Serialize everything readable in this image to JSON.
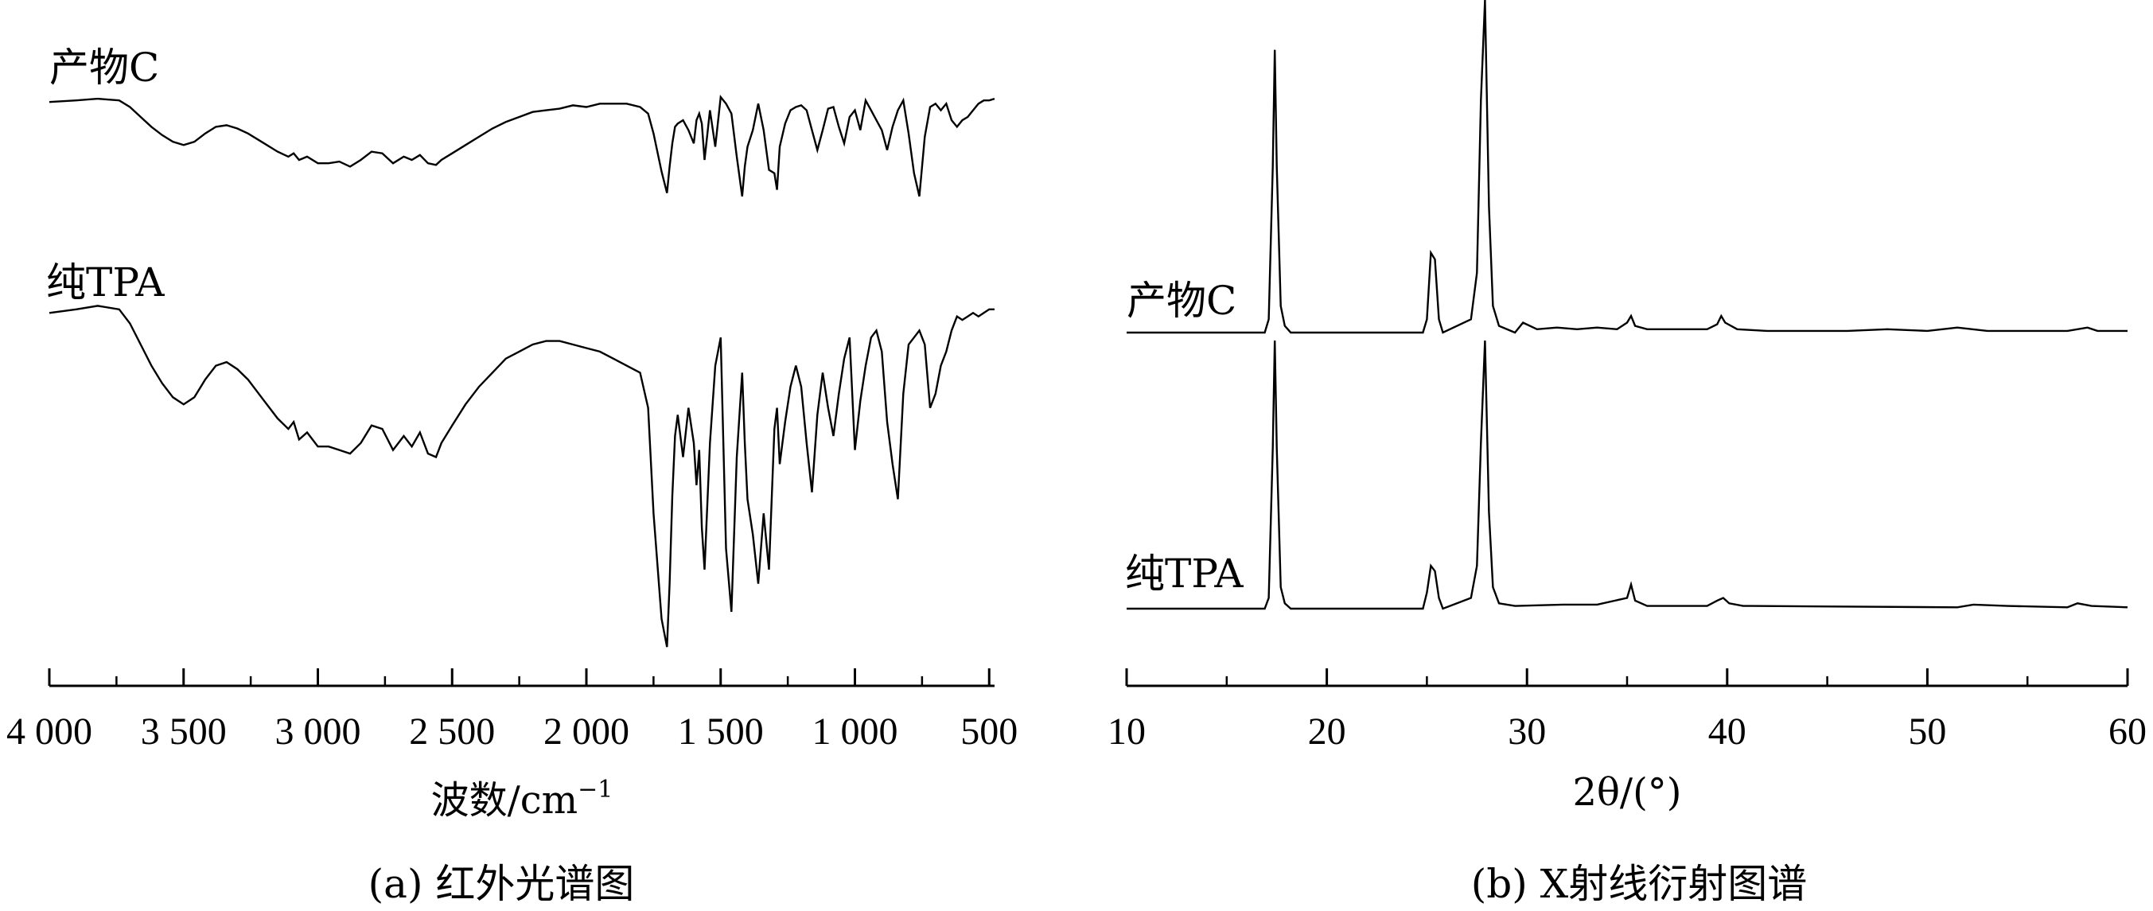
{
  "figure": {
    "captions": [
      "(a)  红外光谱图",
      "(b)  X射线衍射图谱"
    ]
  },
  "chart_data": [
    {
      "type": "line",
      "caption": "(a)  红外光谱图",
      "xlabel": "波数/cm",
      "xlabel_sup": "−1",
      "xlim": [
        4000,
        480
      ],
      "xticks": [
        4000,
        3500,
        3000,
        2500,
        2000,
        1500,
        1000,
        500
      ],
      "xtick_labels": [
        "4 000",
        "3 500",
        "3 000",
        "2 500",
        "2 000",
        "1 500",
        "1 000",
        "500"
      ],
      "xaxis_inverted": true,
      "yaxis_shown": false,
      "ylim": [
        0,
        100
      ],
      "series": [
        {
          "name": "产物C",
          "x": [
            4000,
            3900,
            3820,
            3740,
            3700,
            3660,
            3620,
            3580,
            3540,
            3500,
            3460,
            3420,
            3380,
            3340,
            3300,
            3260,
            3200,
            3150,
            3110,
            3090,
            3070,
            3040,
            3000,
            2960,
            2920,
            2880,
            2840,
            2800,
            2760,
            2720,
            2680,
            2650,
            2620,
            2590,
            2560,
            2540,
            2500,
            2450,
            2400,
            2350,
            2300,
            2250,
            2200,
            2150,
            2100,
            2050,
            2000,
            1950,
            1900,
            1850,
            1800,
            1770,
            1750,
            1720,
            1700,
            1690,
            1680,
            1670,
            1660,
            1640,
            1620,
            1600,
            1590,
            1580,
            1570,
            1560,
            1540,
            1520,
            1500,
            1480,
            1460,
            1440,
            1420,
            1410,
            1400,
            1380,
            1360,
            1340,
            1320,
            1300,
            1290,
            1280,
            1260,
            1240,
            1220,
            1200,
            1180,
            1160,
            1140,
            1120,
            1100,
            1080,
            1060,
            1040,
            1020,
            1000,
            980,
            960,
            940,
            920,
            900,
            880,
            860,
            840,
            820,
            800,
            780,
            760,
            740,
            720,
            700,
            680,
            660,
            640,
            620,
            600,
            580,
            560,
            540,
            520,
            500,
            480
          ],
          "y": [
            97,
            98,
            99,
            98,
            94,
            88,
            82,
            77,
            73,
            71,
            73,
            78,
            82,
            83,
            81,
            78,
            72,
            67,
            64,
            66,
            62,
            64,
            60,
            60,
            61,
            58,
            62,
            67,
            66,
            60,
            64,
            62,
            65,
            60,
            59,
            62,
            66,
            71,
            76,
            81,
            85,
            88,
            91,
            92,
            93,
            95,
            94,
            96,
            96,
            96,
            94,
            90,
            78,
            55,
            42,
            58,
            72,
            82,
            84,
            86,
            80,
            72,
            86,
            90,
            84,
            62,
            92,
            70,
            100,
            96,
            90,
            64,
            40,
            58,
            70,
            80,
            96,
            80,
            56,
            54,
            44,
            70,
            84,
            92,
            94,
            95,
            92,
            80,
            68,
            80,
            93,
            94,
            82,
            72,
            88,
            92,
            80,
            98,
            92,
            86,
            80,
            68,
            82,
            92,
            98,
            78,
            54,
            40,
            76,
            94,
            96,
            92,
            96,
            86,
            82,
            86,
            88,
            92,
            96,
            98,
            98,
            99
          ]
        },
        {
          "name": "纯TPA",
          "x": [
            4000,
            3900,
            3820,
            3740,
            3700,
            3660,
            3620,
            3580,
            3540,
            3500,
            3460,
            3420,
            3380,
            3340,
            3300,
            3260,
            3200,
            3150,
            3110,
            3090,
            3070,
            3040,
            3000,
            2960,
            2920,
            2880,
            2840,
            2800,
            2760,
            2720,
            2680,
            2650,
            2620,
            2590,
            2560,
            2540,
            2500,
            2450,
            2400,
            2350,
            2300,
            2250,
            2200,
            2150,
            2100,
            2050,
            2000,
            1950,
            1900,
            1850,
            1800,
            1770,
            1750,
            1720,
            1700,
            1690,
            1680,
            1670,
            1660,
            1640,
            1620,
            1600,
            1590,
            1580,
            1570,
            1560,
            1540,
            1520,
            1500,
            1480,
            1460,
            1440,
            1420,
            1410,
            1400,
            1380,
            1360,
            1340,
            1320,
            1300,
            1290,
            1280,
            1260,
            1240,
            1220,
            1200,
            1180,
            1160,
            1140,
            1120,
            1100,
            1080,
            1060,
            1040,
            1020,
            1000,
            980,
            960,
            940,
            920,
            900,
            880,
            860,
            840,
            820,
            800,
            780,
            760,
            740,
            720,
            700,
            680,
            660,
            640,
            620,
            600,
            580,
            560,
            540,
            520,
            500,
            480
          ],
          "y": [
            97,
            98,
            99,
            98,
            94,
            88,
            82,
            77,
            73,
            71,
            73,
            78,
            82,
            83,
            81,
            78,
            72,
            67,
            64,
            66,
            61,
            63,
            59,
            59,
            58,
            57,
            60,
            65,
            64,
            58,
            62,
            59,
            63,
            57,
            56,
            60,
            65,
            71,
            76,
            80,
            84,
            86,
            88,
            89,
            89,
            88,
            87,
            86,
            84,
            82,
            80,
            70,
            40,
            10,
            2,
            20,
            45,
            62,
            68,
            56,
            70,
            60,
            48,
            58,
            36,
            24,
            60,
            82,
            90,
            30,
            12,
            56,
            80,
            60,
            44,
            34,
            20,
            40,
            24,
            64,
            70,
            54,
            66,
            76,
            82,
            76,
            60,
            46,
            68,
            80,
            70,
            62,
            74,
            84,
            90,
            58,
            72,
            82,
            90,
            92,
            86,
            66,
            54,
            44,
            74,
            88,
            90,
            92,
            88,
            70,
            74,
            82,
            86,
            92,
            96,
            95,
            96,
            97,
            96,
            97,
            98,
            98
          ]
        }
      ]
    },
    {
      "type": "line",
      "caption": "(b)  X射线衍射图谱",
      "xlabel": "2θ/(°)",
      "xlim": [
        10,
        60
      ],
      "xticks": [
        10,
        20,
        30,
        40,
        50,
        60
      ],
      "xtick_labels": [
        "10",
        "20",
        "30",
        "40",
        "50",
        "60"
      ],
      "yaxis_shown": false,
      "ylim": [
        0,
        100
      ],
      "series": [
        {
          "name": "产物C",
          "x": [
            10,
            16.9,
            17.1,
            17.3,
            17.4,
            17.5,
            17.7,
            17.9,
            18.2,
            24.8,
            25.0,
            25.2,
            25.4,
            25.6,
            25.8,
            27.2,
            27.5,
            27.7,
            27.9,
            28.1,
            28.3,
            28.6,
            29.4,
            29.8,
            30.5,
            31.5,
            32.5,
            33.5,
            34.5,
            35.0,
            35.2,
            35.4,
            36.0,
            38.0,
            39.0,
            39.5,
            39.7,
            39.9,
            40.5,
            42.0,
            46.0,
            48.0,
            50.0,
            51.5,
            53.0,
            55.0,
            57.0,
            58.0,
            58.5,
            60
          ],
          "y": [
            0,
            0,
            4,
            50,
            85,
            50,
            8,
            2,
            0,
            0,
            4,
            24,
            22,
            4,
            0,
            4,
            18,
            70,
            100,
            38,
            8,
            2,
            0,
            3,
            1,
            1.5,
            1,
            1.5,
            1,
            3,
            5,
            2,
            1,
            1,
            1,
            2.5,
            5,
            3,
            1,
            0.5,
            0.5,
            1,
            0.5,
            1.5,
            0.5,
            0.5,
            0.5,
            1.5,
            0.5,
            0.5
          ]
        },
        {
          "name": "纯TPA",
          "x": [
            10,
            16.9,
            17.1,
            17.3,
            17.4,
            17.5,
            17.7,
            17.9,
            18.2,
            24.8,
            25.0,
            25.2,
            25.4,
            25.6,
            25.8,
            27.2,
            27.5,
            27.7,
            27.9,
            28.1,
            28.3,
            28.6,
            29.4,
            31.8,
            33.5,
            35.0,
            35.2,
            35.4,
            36.0,
            37.2,
            39.0,
            39.5,
            39.8,
            40.1,
            40.8,
            41.2,
            51.5,
            52.3,
            54.0,
            57.0,
            57.5,
            58.2,
            60
          ],
          "y": [
            0,
            0,
            4,
            60,
            100,
            60,
            8,
            2,
            0,
            0,
            6,
            16,
            14,
            4,
            0,
            4,
            16,
            62,
            100,
            36,
            8,
            2,
            1,
            1.5,
            1.5,
            4,
            9,
            3,
            1,
            1,
            1,
            3,
            4,
            2,
            1,
            1,
            0.5,
            1.5,
            1,
            0.5,
            2,
            1,
            0.5
          ]
        }
      ]
    }
  ]
}
